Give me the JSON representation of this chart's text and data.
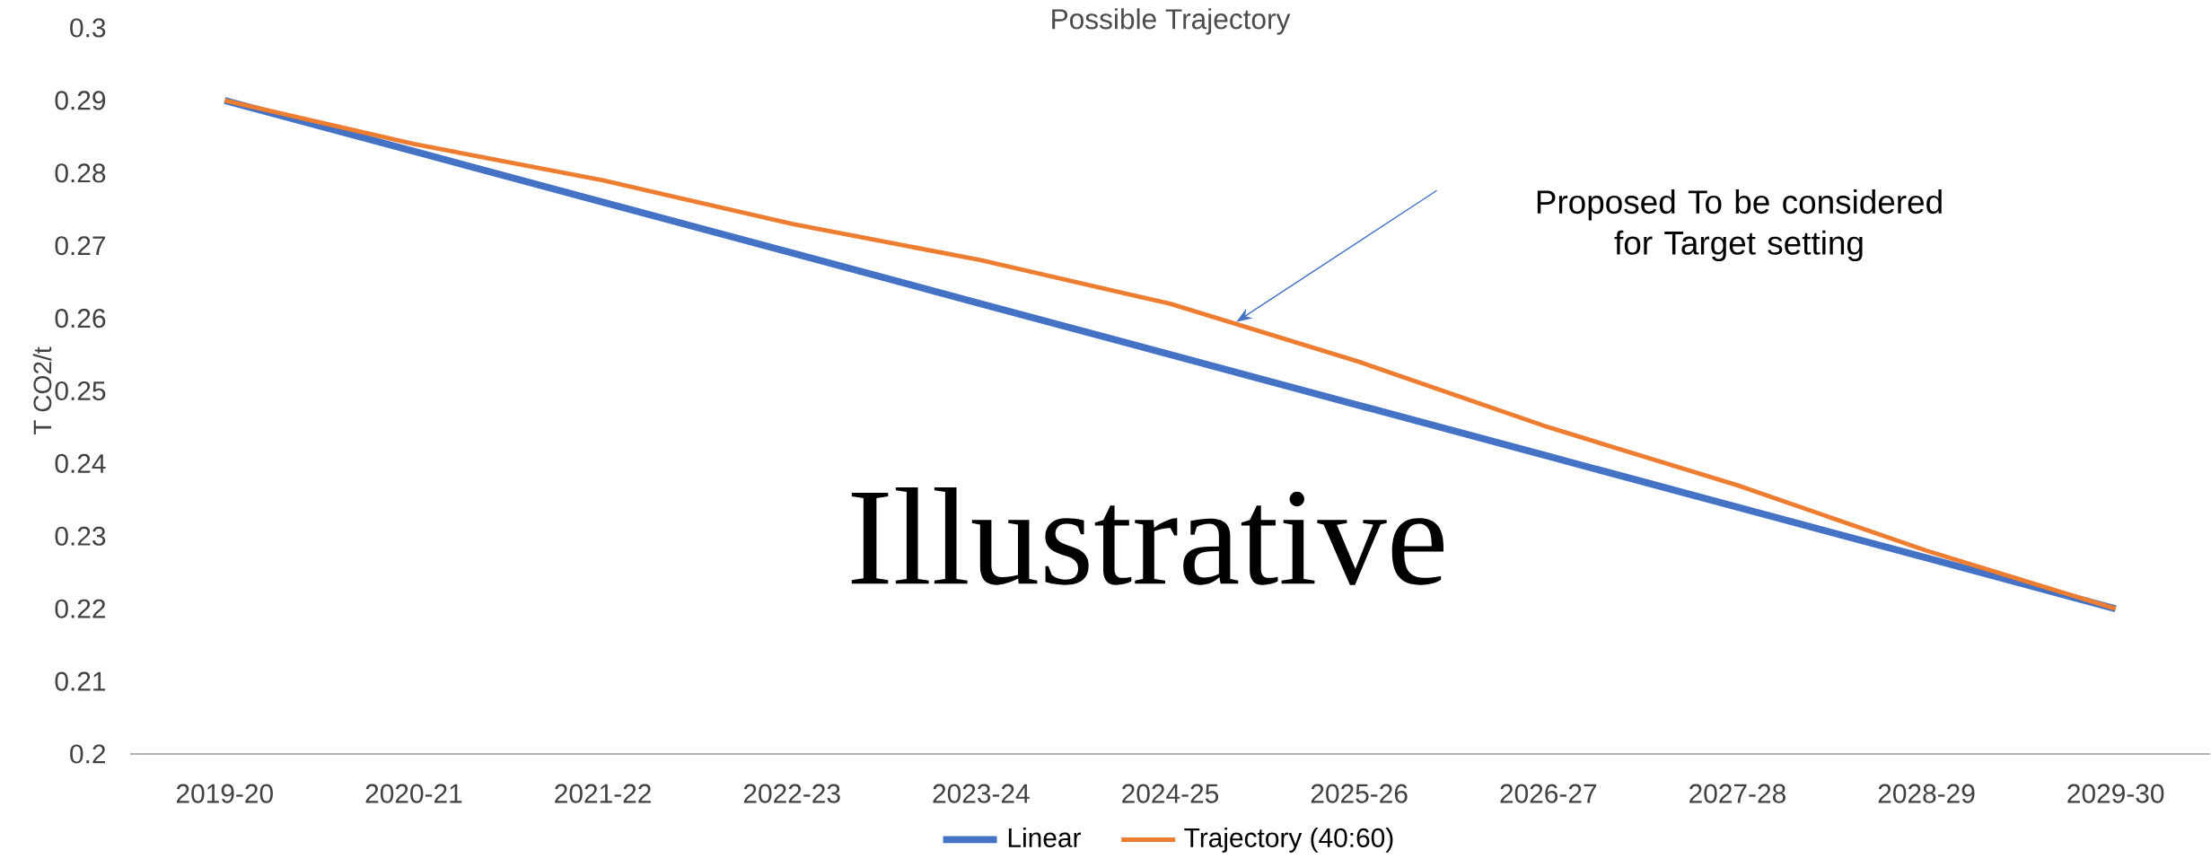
{
  "chart_data": {
    "type": "line",
    "title": "Possible Trajectory",
    "ylabel": "T CO2/t",
    "categories": [
      "2019-20",
      "2020-21",
      "2021-22",
      "2022-23",
      "2023-24",
      "2024-25",
      "2025-26",
      "2026-27",
      "2027-28",
      "2028-29",
      "2029-30"
    ],
    "series": [
      {
        "name": "Linear",
        "color": "#4472c4",
        "values": [
          0.29,
          0.283,
          0.276,
          0.269,
          0.262,
          0.255,
          0.248,
          0.241,
          0.234,
          0.227,
          0.22
        ]
      },
      {
        "name": "Trajectory (40:60)",
        "color": "#ed7d31",
        "values": [
          0.29,
          0.284,
          0.279,
          0.273,
          0.268,
          0.262,
          0.254,
          0.245,
          0.237,
          0.228,
          0.22
        ]
      }
    ],
    "ylim": [
      0.2,
      0.3
    ],
    "yticks": [
      0.2,
      0.21,
      0.22,
      0.23,
      0.24,
      0.25,
      0.26,
      0.27,
      0.28,
      0.29,
      0.3
    ],
    "legend": "bottom",
    "annotations": [
      "Proposed To be considered for Target setting",
      "Illustrative"
    ]
  }
}
